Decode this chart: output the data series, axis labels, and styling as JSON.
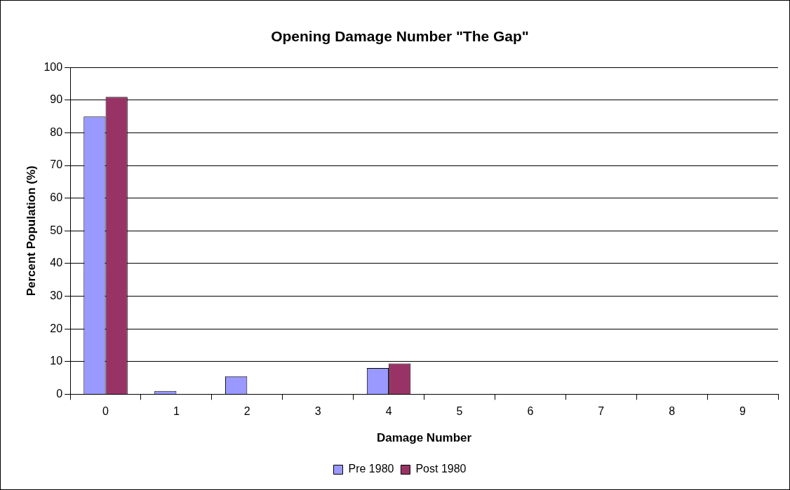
{
  "chart_data": {
    "type": "bar",
    "title": "Opening Damage Number \"The Gap\"",
    "xlabel": "Damage Number",
    "ylabel": "Percent Population (%)",
    "categories": [
      "0",
      "1",
      "2",
      "3",
      "4",
      "5",
      "6",
      "7",
      "8",
      "9"
    ],
    "series": [
      {
        "name": "Pre 1980",
        "color": "#9999ff",
        "values": [
          85,
          1,
          5.5,
          0,
          8,
          0,
          0,
          0,
          0,
          0
        ]
      },
      {
        "name": "Post 1980",
        "color": "#993366",
        "values": [
          91,
          0,
          0,
          0,
          9.4,
          0,
          0,
          0,
          0,
          0
        ]
      }
    ],
    "ylim": [
      0,
      100
    ],
    "yticks": [
      0,
      10,
      20,
      30,
      40,
      50,
      60,
      70,
      80,
      90,
      100
    ],
    "grid": "y",
    "legend": "bottom"
  }
}
